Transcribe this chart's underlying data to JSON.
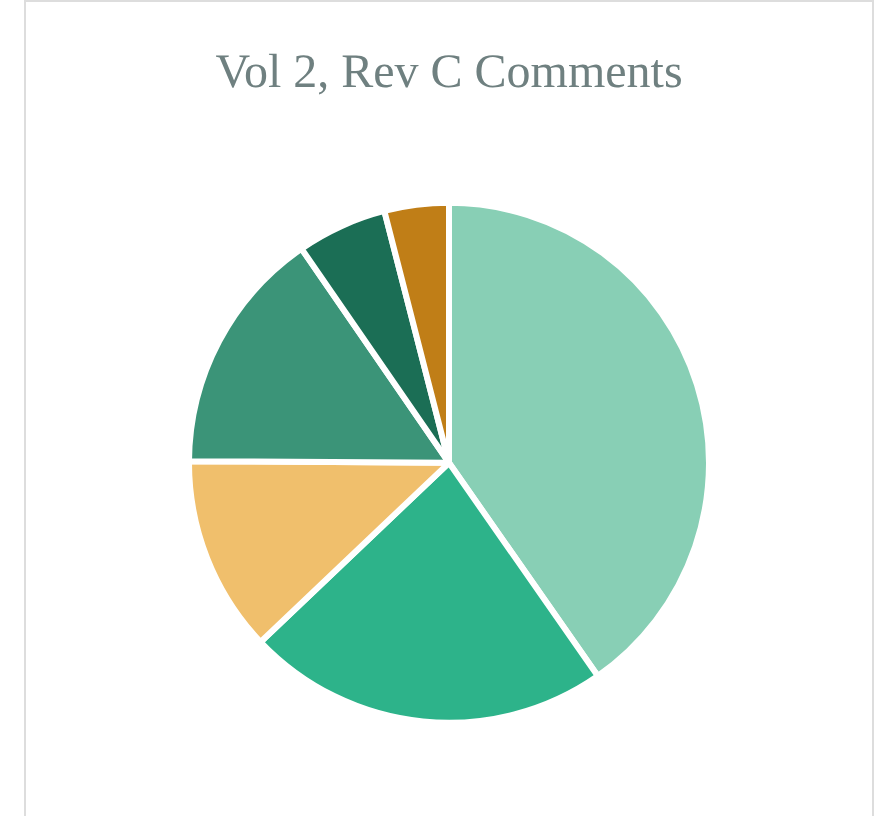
{
  "chart_data": {
    "type": "pie",
    "title": "Vol 2, Rev C Comments",
    "categories": [
      null,
      null,
      null,
      null,
      null,
      null
    ],
    "values": [
      40.3,
      22.6,
      12.2,
      15.3,
      5.6,
      4.0
    ],
    "colors": [
      "#88cfb5",
      "#2db38a",
      "#f0bf6c",
      "#3b9478",
      "#1b6e55",
      "#c07e17"
    ],
    "legend": false
  }
}
